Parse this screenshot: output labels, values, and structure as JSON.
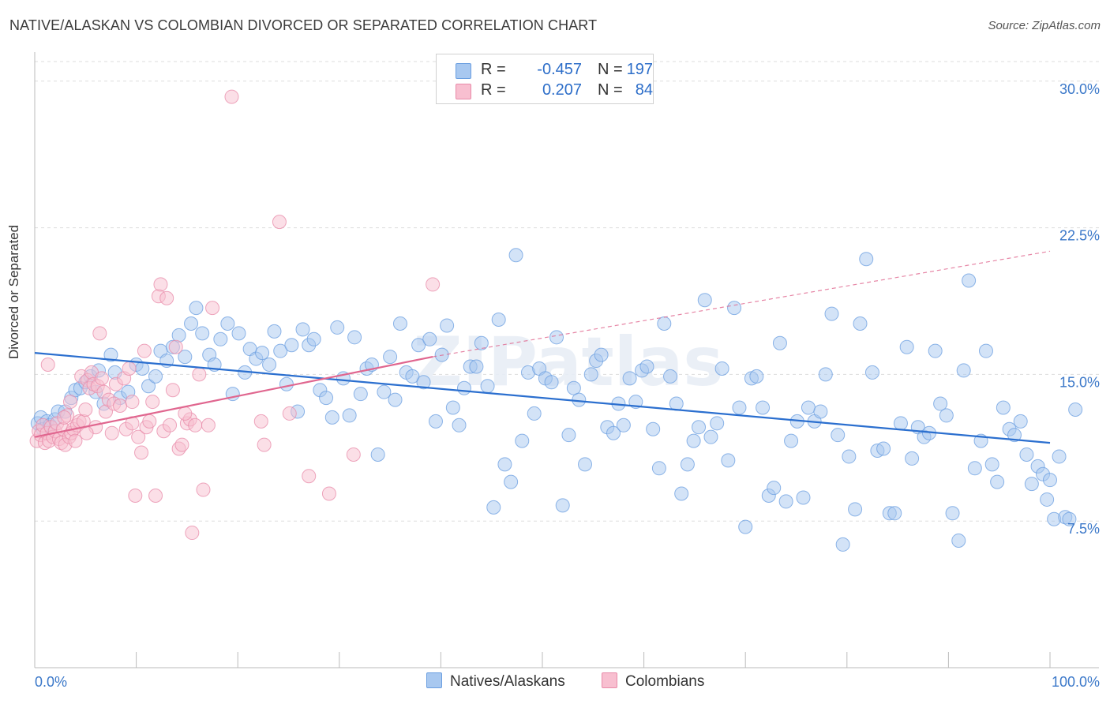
{
  "title": "NATIVE/ALASKAN VS COLOMBIAN DIVORCED OR SEPARATED CORRELATION CHART",
  "source": "Source: ZipAtlas.com",
  "legend": {
    "r_label": "R =",
    "n_label": "N =",
    "rows": [
      {
        "r": "-0.457",
        "n": "197",
        "color": "#a8c8f0",
        "border": "#6a9ee0"
      },
      {
        "r": "0.207",
        "n": "84",
        "color": "#f8bfd0",
        "border": "#e88aa8"
      }
    ]
  },
  "bottom_legend": [
    {
      "label": "Natives/Alaskans",
      "color": "#a8c8f0",
      "border": "#6a9ee0"
    },
    {
      "label": "Colombians",
      "color": "#f8bfd0",
      "border": "#e88aa8"
    }
  ],
  "chart_data": {
    "type": "scatter",
    "title": "NATIVE/ALASKAN VS COLOMBIAN DIVORCED OR SEPARATED CORRELATION CHART",
    "xlabel": "",
    "ylabel": "Divorced or Separated",
    "xlim": [
      0,
      100
    ],
    "ylim": [
      0,
      31
    ],
    "x_tick_labels": [
      "0.0%",
      "100.0%"
    ],
    "y_ticks": [
      {
        "value": 7.5,
        "label": "7.5%"
      },
      {
        "value": 15.0,
        "label": "15.0%"
      },
      {
        "value": 22.5,
        "label": "22.5%"
      },
      {
        "value": 30.0,
        "label": "30.0%"
      }
    ],
    "grid": true,
    "legend_position": "top-center",
    "watermark": "ZIPatlas",
    "series": [
      {
        "name": "Natives/Alaskans",
        "color": "#6a9ee0",
        "fill": "#a8c8f0",
        "trend": {
          "x0": 0,
          "y0": 16.1,
          "x1": 100,
          "y1": 11.5,
          "style": "solid"
        },
        "points": [
          [
            0.3,
            12.5
          ],
          [
            0.6,
            12.8
          ],
          [
            0.8,
            12.2
          ],
          [
            1.2,
            12.6
          ],
          [
            1.5,
            12.4
          ],
          [
            2,
            12.7
          ],
          [
            2.3,
            13.1
          ],
          [
            3,
            13.1
          ],
          [
            3.6,
            13.8
          ],
          [
            4,
            14.2
          ],
          [
            4.5,
            14.3
          ],
          [
            5,
            14.6
          ],
          [
            5.5,
            14.9
          ],
          [
            6,
            14.1
          ],
          [
            6.3,
            15.2
          ],
          [
            6.8,
            13.5
          ],
          [
            7.5,
            16.0
          ],
          [
            7.9,
            15.1
          ],
          [
            8.4,
            13.8
          ],
          [
            9.2,
            14.1
          ],
          [
            10,
            15.5
          ],
          [
            10.6,
            15.3
          ],
          [
            11.2,
            14.4
          ],
          [
            11.9,
            14.9
          ],
          [
            12.4,
            16.2
          ],
          [
            13,
            15.7
          ],
          [
            13.6,
            16.4
          ],
          [
            14.2,
            17.0
          ],
          [
            14.8,
            15.9
          ],
          [
            15.4,
            17.6
          ],
          [
            15.9,
            18.4
          ],
          [
            16.5,
            17.1
          ],
          [
            17.2,
            16.0
          ],
          [
            17.7,
            15.5
          ],
          [
            18.3,
            16.8
          ],
          [
            19,
            17.6
          ],
          [
            19.5,
            14.0
          ],
          [
            20.1,
            17.1
          ],
          [
            20.7,
            15.1
          ],
          [
            21.2,
            16.3
          ],
          [
            21.8,
            15.8
          ],
          [
            22.4,
            16.1
          ],
          [
            23.1,
            15.5
          ],
          [
            23.6,
            17.2
          ],
          [
            24.2,
            16.2
          ],
          [
            24.8,
            14.5
          ],
          [
            25.3,
            16.5
          ],
          [
            25.9,
            13.1
          ],
          [
            26.4,
            17.3
          ],
          [
            27,
            16.5
          ],
          [
            27.5,
            16.8
          ],
          [
            28.1,
            14.2
          ],
          [
            28.7,
            13.8
          ],
          [
            29.3,
            12.8
          ],
          [
            29.8,
            17.4
          ],
          [
            30.4,
            14.8
          ],
          [
            31,
            12.9
          ],
          [
            31.5,
            16.9
          ],
          [
            32.1,
            14.0
          ],
          [
            32.7,
            15.3
          ],
          [
            33.2,
            15.5
          ],
          [
            33.8,
            10.9
          ],
          [
            34.4,
            14.1
          ],
          [
            35,
            15.9
          ],
          [
            35.5,
            13.7
          ],
          [
            36,
            17.6
          ],
          [
            36.6,
            15.1
          ],
          [
            37.2,
            14.9
          ],
          [
            37.8,
            16.5
          ],
          [
            38.3,
            14.6
          ],
          [
            38.9,
            16.8
          ],
          [
            39.5,
            12.6
          ],
          [
            40.1,
            16.0
          ],
          [
            40.6,
            17.5
          ],
          [
            41.2,
            13.3
          ],
          [
            41.8,
            12.4
          ],
          [
            42.3,
            14.3
          ],
          [
            42.9,
            15.4
          ],
          [
            43.5,
            15.4
          ],
          [
            44,
            16.6
          ],
          [
            44.6,
            14.4
          ],
          [
            45.2,
            8.2
          ],
          [
            45.7,
            17.8
          ],
          [
            46.3,
            10.4
          ],
          [
            46.9,
            9.5
          ],
          [
            47.4,
            21.1
          ],
          [
            48,
            11.6
          ],
          [
            48.6,
            15.1
          ],
          [
            49.2,
            13.0
          ],
          [
            49.7,
            15.3
          ],
          [
            50.3,
            14.8
          ],
          [
            50.9,
            14.6
          ],
          [
            51.4,
            16.9
          ],
          [
            52,
            8.3
          ],
          [
            52.6,
            11.9
          ],
          [
            53.1,
            14.3
          ],
          [
            53.6,
            13.7
          ],
          [
            54.2,
            10.4
          ],
          [
            54.8,
            15.0
          ],
          [
            55.3,
            15.7
          ],
          [
            55.8,
            16.0
          ],
          [
            56.4,
            12.3
          ],
          [
            57,
            12.0
          ],
          [
            57.5,
            13.5
          ],
          [
            58,
            12.4
          ],
          [
            58.6,
            14.8
          ],
          [
            59.2,
            13.6
          ],
          [
            59.8,
            15.2
          ],
          [
            60.3,
            15.4
          ],
          [
            60.9,
            12.2
          ],
          [
            61.5,
            10.2
          ],
          [
            62,
            17.6
          ],
          [
            62.6,
            14.9
          ],
          [
            63.2,
            13.5
          ],
          [
            63.7,
            8.9
          ],
          [
            64.3,
            10.4
          ],
          [
            64.9,
            11.6
          ],
          [
            65.4,
            12.3
          ],
          [
            66,
            18.8
          ],
          [
            66.6,
            11.8
          ],
          [
            67.2,
            12.5
          ],
          [
            67.7,
            15.3
          ],
          [
            68.3,
            10.6
          ],
          [
            68.9,
            18.4
          ],
          [
            69.4,
            13.3
          ],
          [
            70,
            7.2
          ],
          [
            70.6,
            14.8
          ],
          [
            71.1,
            14.9
          ],
          [
            71.7,
            13.3
          ],
          [
            72.3,
            8.8
          ],
          [
            72.8,
            9.2
          ],
          [
            73.4,
            16.6
          ],
          [
            74,
            8.5
          ],
          [
            74.5,
            11.6
          ],
          [
            75.1,
            12.6
          ],
          [
            75.7,
            8.7
          ],
          [
            76.2,
            13.3
          ],
          [
            76.8,
            12.6
          ],
          [
            77.4,
            13.1
          ],
          [
            77.9,
            15.0
          ],
          [
            78.5,
            18.1
          ],
          [
            79.1,
            11.9
          ],
          [
            79.6,
            6.3
          ],
          [
            80.2,
            10.8
          ],
          [
            80.8,
            8.1
          ],
          [
            81.3,
            17.6
          ],
          [
            81.9,
            20.9
          ],
          [
            82.5,
            15.1
          ],
          [
            83,
            11.1
          ],
          [
            83.6,
            11.2
          ],
          [
            84.2,
            7.9
          ],
          [
            84.7,
            7.9
          ],
          [
            85.3,
            12.5
          ],
          [
            85.9,
            16.4
          ],
          [
            86.4,
            10.7
          ],
          [
            87,
            12.3
          ],
          [
            87.6,
            11.8
          ],
          [
            88.1,
            12.0
          ],
          [
            88.7,
            16.2
          ],
          [
            89.2,
            13.5
          ],
          [
            89.8,
            12.9
          ],
          [
            90.4,
            7.9
          ],
          [
            91,
            6.5
          ],
          [
            91.5,
            15.2
          ],
          [
            92,
            19.8
          ],
          [
            92.6,
            10.2
          ],
          [
            93.2,
            11.6
          ],
          [
            93.7,
            16.2
          ],
          [
            94.3,
            10.4
          ],
          [
            94.8,
            9.5
          ],
          [
            95.4,
            13.3
          ],
          [
            96,
            12.2
          ],
          [
            96.5,
            11.9
          ],
          [
            97.1,
            12.6
          ],
          [
            97.7,
            10.9
          ],
          [
            98.2,
            9.4
          ],
          [
            98.8,
            10.3
          ],
          [
            99.3,
            9.9
          ],
          [
            99.7,
            8.6
          ],
          [
            100,
            9.6
          ],
          [
            100.4,
            7.6
          ],
          [
            100.9,
            10.8
          ],
          [
            101.5,
            7.7
          ],
          [
            101.9,
            7.6
          ],
          [
            102.5,
            13.2
          ]
        ]
      },
      {
        "name": "Colombians",
        "color": "#e88aa8",
        "fill": "#f8bfd0",
        "trend": {
          "x0": 0,
          "y0": 11.8,
          "x1": 39.2,
          "y1": 15.9,
          "style": "solid",
          "dashed_to": {
            "x": 100,
            "y": 21.3
          }
        },
        "points": [
          [
            0.2,
            11.6
          ],
          [
            0.4,
            12.1
          ],
          [
            0.6,
            11.9
          ],
          [
            0.8,
            12.4
          ],
          [
            1,
            11.5
          ],
          [
            1.2,
            12.0
          ],
          [
            1.4,
            11.6
          ],
          [
            1.6,
            12.3
          ],
          [
            1.8,
            11.8
          ],
          [
            2.0,
            12.1
          ],
          [
            2.2,
            12.5
          ],
          [
            2.4,
            11.7
          ],
          [
            2.6,
            11.5
          ],
          [
            2.8,
            12.2
          ],
          [
            3,
            11.4
          ],
          [
            3.2,
            12.9
          ],
          [
            3.4,
            11.8
          ],
          [
            3.6,
            12.0
          ],
          [
            3.8,
            12.2
          ],
          [
            4.0,
            11.6
          ],
          [
            4.2,
            12.4
          ],
          [
            4.4,
            12.6
          ],
          [
            4.6,
            14.9
          ],
          [
            4.8,
            12.6
          ],
          [
            5,
            13.2
          ],
          [
            5.2,
            14.7
          ],
          [
            5.4,
            14.3
          ],
          [
            5.6,
            15.1
          ],
          [
            5.8,
            14.5
          ],
          [
            6,
            12.3
          ],
          [
            6.2,
            14.4
          ],
          [
            6.4,
            17.1
          ],
          [
            6.6,
            14.8
          ],
          [
            6.8,
            14.1
          ],
          [
            7,
            13.1
          ],
          [
            7.3,
            13.7
          ],
          [
            7.6,
            12.0
          ],
          [
            7.8,
            13.5
          ],
          [
            8,
            14.5
          ],
          [
            8.4,
            13.4
          ],
          [
            8.8,
            14.8
          ],
          [
            9,
            12.2
          ],
          [
            9.3,
            15.3
          ],
          [
            9.6,
            13.6
          ],
          [
            9.9,
            8.8
          ],
          [
            10.2,
            11.8
          ],
          [
            10.5,
            11.0
          ],
          [
            10.8,
            16.2
          ],
          [
            11,
            12.3
          ],
          [
            11.3,
            12.6
          ],
          [
            11.6,
            13.6
          ],
          [
            11.9,
            8.8
          ],
          [
            12.2,
            19.0
          ],
          [
            12.4,
            19.6
          ],
          [
            12.7,
            12.1
          ],
          [
            13,
            18.9
          ],
          [
            13.3,
            12.4
          ],
          [
            13.6,
            14.2
          ],
          [
            13.9,
            16.4
          ],
          [
            14.2,
            11.2
          ],
          [
            14.5,
            11.4
          ],
          [
            15,
            12.5
          ],
          [
            15.3,
            12.7
          ],
          [
            15.5,
            6.9
          ],
          [
            15.8,
            12.4
          ],
          [
            16.2,
            15.0
          ],
          [
            16.6,
            9.1
          ],
          [
            17.1,
            12.4
          ],
          [
            17.5,
            18.4
          ],
          [
            19.4,
            29.2
          ],
          [
            22.3,
            12.6
          ],
          [
            22.6,
            11.4
          ],
          [
            24.1,
            22.8
          ],
          [
            25.1,
            13.0
          ],
          [
            27,
            9.8
          ],
          [
            29,
            8.9
          ],
          [
            31.4,
            10.9
          ],
          [
            39.2,
            19.6
          ],
          [
            1.3,
            15.5
          ],
          [
            2.9,
            12.8
          ],
          [
            3.5,
            13.6
          ],
          [
            5.1,
            12.0
          ],
          [
            9.6,
            12.5
          ],
          [
            14.8,
            13.0
          ]
        ]
      }
    ]
  }
}
